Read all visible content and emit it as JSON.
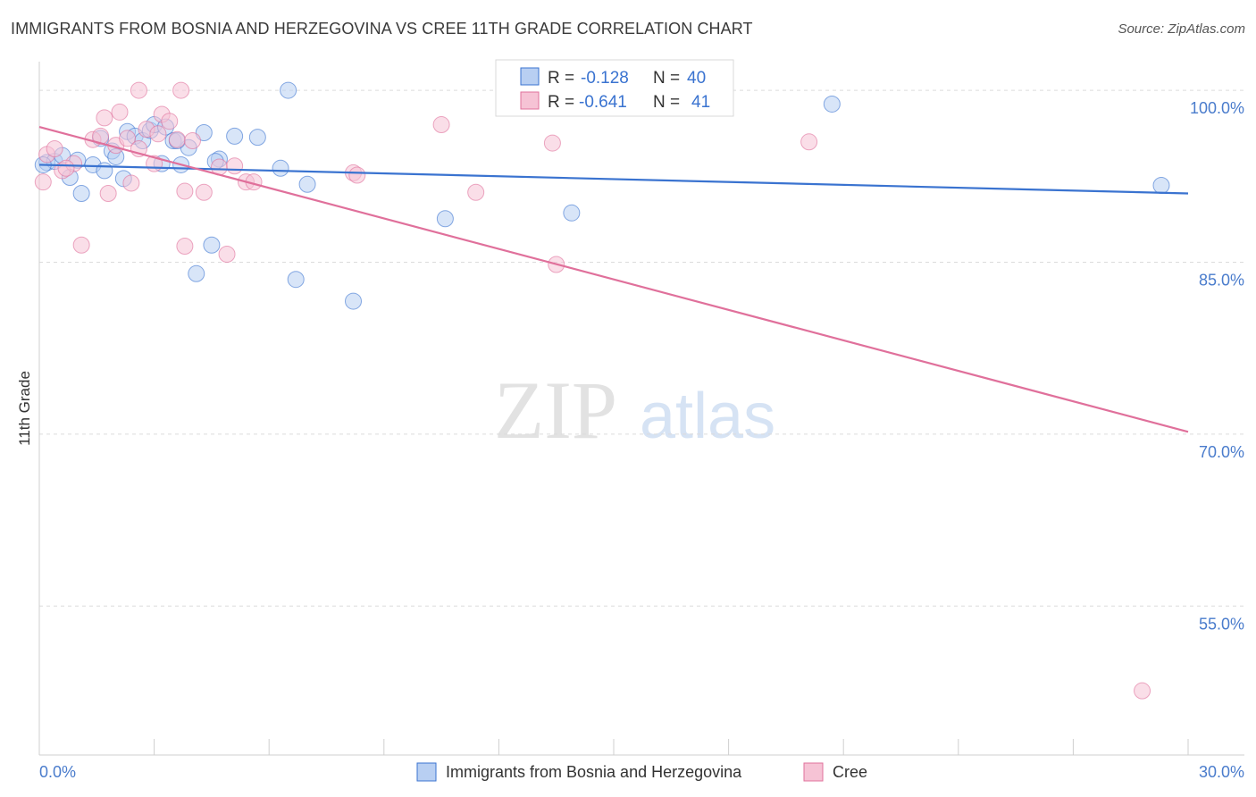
{
  "title": "IMMIGRANTS FROM BOSNIA AND HERZEGOVINA VS CREE 11TH GRADE CORRELATION CHART",
  "source": "Source: ZipAtlas.com",
  "watermark": {
    "zip": "ZIP",
    "atlas": "atlas"
  },
  "colors": {
    "blue": "#3a73d0",
    "pink": "#e0709b",
    "blue_fill": "#b8cff2",
    "pink_fill": "#f6c3d5",
    "axis_label": "#4a7ccc"
  },
  "chart_data": {
    "type": "scatter",
    "title": "IMMIGRANTS FROM BOSNIA AND HERZEGOVINA VS CREE 11TH GRADE CORRELATION CHART",
    "xlabel": "",
    "ylabel": "11th Grade",
    "xlim": [
      0,
      30
    ],
    "ylim": [
      42,
      102.5
    ],
    "x_tick_labels": {
      "min": "0.0%",
      "max": "30.0%"
    },
    "y_ticks": [
      {
        "value": 100,
        "label": "100.0%"
      },
      {
        "value": 85,
        "label": "85.0%"
      },
      {
        "value": 70,
        "label": "70.0%"
      },
      {
        "value": 55,
        "label": "55.0%"
      }
    ],
    "stats": [
      {
        "r_label": "R =",
        "r": "-0.128",
        "n_label": "N =",
        "n": "40"
      },
      {
        "r_label": "R =",
        "r": "-0.641",
        "n_label": "N =",
        "n": "41"
      }
    ],
    "series": [
      {
        "name": "Immigrants from Bosnia and Herzegovina",
        "color": "#3a73d0",
        "trend": {
          "x0": 0,
          "y0": 93.5,
          "x1": 30,
          "y1": 91.0
        },
        "points": [
          [
            0.2,
            93.7
          ],
          [
            0.4,
            93.8
          ],
          [
            0.6,
            94.3
          ],
          [
            0.8,
            92.4
          ],
          [
            1.0,
            93.9
          ],
          [
            1.1,
            91.0
          ],
          [
            1.4,
            93.5
          ],
          [
            1.6,
            95.8
          ],
          [
            1.7,
            93.0
          ],
          [
            1.9,
            94.7
          ],
          [
            2.0,
            94.2
          ],
          [
            2.2,
            92.3
          ],
          [
            2.3,
            96.4
          ],
          [
            2.5,
            96.0
          ],
          [
            2.7,
            95.6
          ],
          [
            2.9,
            96.5
          ],
          [
            3.0,
            97.0
          ],
          [
            3.2,
            93.6
          ],
          [
            3.3,
            96.8
          ],
          [
            3.5,
            95.6
          ],
          [
            3.7,
            93.5
          ],
          [
            3.9,
            95.0
          ],
          [
            4.1,
            84.0
          ],
          [
            4.3,
            96.3
          ],
          [
            4.5,
            86.5
          ],
          [
            4.7,
            94.0
          ],
          [
            5.1,
            96.0
          ],
          [
            5.7,
            95.9
          ],
          [
            6.3,
            93.2
          ],
          [
            6.5,
            100.0
          ],
          [
            6.7,
            83.5
          ],
          [
            7.0,
            91.8
          ],
          [
            8.2,
            81.6
          ],
          [
            10.6,
            88.8
          ],
          [
            13.9,
            89.3
          ],
          [
            20.7,
            98.8
          ],
          [
            29.3,
            91.7
          ],
          [
            0.1,
            93.5
          ],
          [
            3.6,
            95.6
          ],
          [
            4.6,
            93.8
          ]
        ]
      },
      {
        "name": "Cree",
        "color": "#e0709b",
        "trend": {
          "x0": 0,
          "y0": 96.8,
          "x1": 30,
          "y1": 70.2
        },
        "points": [
          [
            0.1,
            92.0
          ],
          [
            0.2,
            94.4
          ],
          [
            0.4,
            94.9
          ],
          [
            0.6,
            93.0
          ],
          [
            0.9,
            93.6
          ],
          [
            1.1,
            86.5
          ],
          [
            1.4,
            95.7
          ],
          [
            1.6,
            96.0
          ],
          [
            1.7,
            97.6
          ],
          [
            1.8,
            91.0
          ],
          [
            2.0,
            95.2
          ],
          [
            2.1,
            98.1
          ],
          [
            2.3,
            95.8
          ],
          [
            2.4,
            91.9
          ],
          [
            2.6,
            94.9
          ],
          [
            2.6,
            100.0
          ],
          [
            2.8,
            96.6
          ],
          [
            3.0,
            93.6
          ],
          [
            3.2,
            97.9
          ],
          [
            3.4,
            97.3
          ],
          [
            3.6,
            95.7
          ],
          [
            3.7,
            100.0
          ],
          [
            3.8,
            86.4
          ],
          [
            3.8,
            91.2
          ],
          [
            4.0,
            95.6
          ],
          [
            4.3,
            91.1
          ],
          [
            4.7,
            93.3
          ],
          [
            4.9,
            85.7
          ],
          [
            5.1,
            93.4
          ],
          [
            5.4,
            92.0
          ],
          [
            8.2,
            92.8
          ],
          [
            8.3,
            92.6
          ],
          [
            10.5,
            97.0
          ],
          [
            11.4,
            91.1
          ],
          [
            13.4,
            95.4
          ],
          [
            13.5,
            84.8
          ],
          [
            20.1,
            95.5
          ],
          [
            28.8,
            47.6
          ],
          [
            0.7,
            93.2
          ],
          [
            3.1,
            96.2
          ],
          [
            5.6,
            92.0
          ]
        ]
      }
    ]
  }
}
